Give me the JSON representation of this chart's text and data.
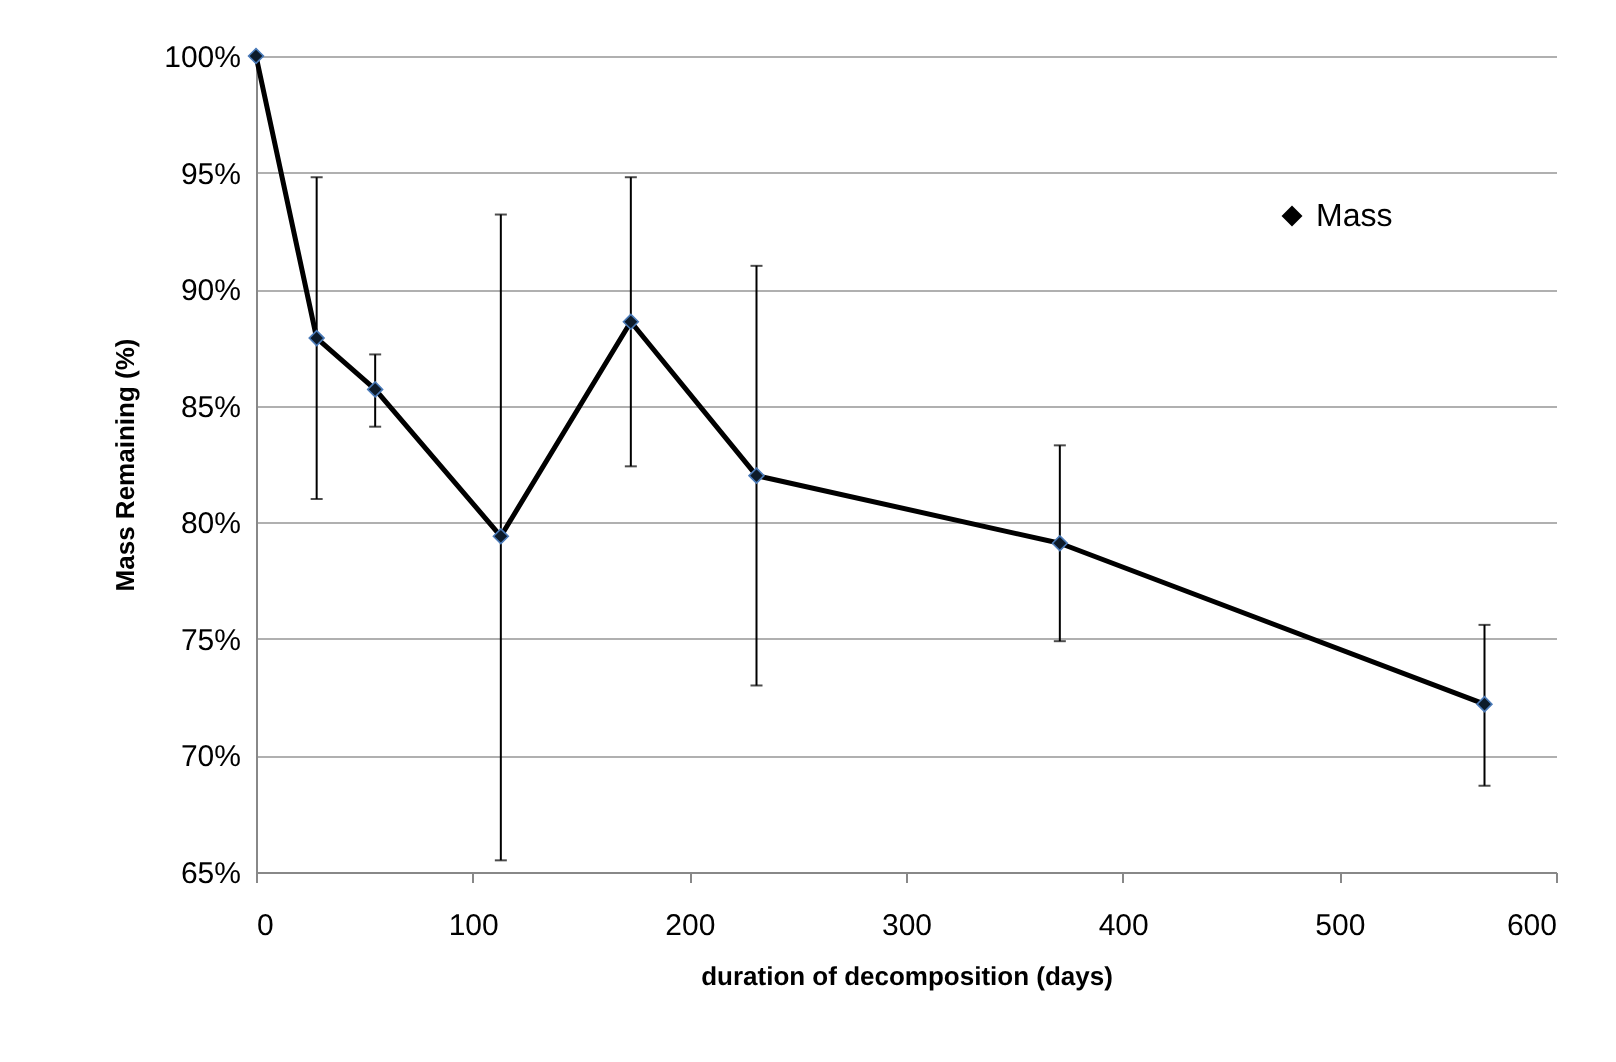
{
  "chart_data": {
    "type": "line",
    "xlabel": "duration of decomposition (days)",
    "ylabel": "Mass Remaining (%)",
    "x": [
      0,
      28,
      55,
      113,
      173,
      231,
      371,
      567
    ],
    "series": [
      {
        "name": "Mass",
        "color": "#000000",
        "values": [
          100,
          87.9,
          85.7,
          79.4,
          88.6,
          82.0,
          79.1,
          72.2
        ],
        "errors": [
          null,
          [
            81.0,
            94.8
          ],
          [
            84.1,
            87.2
          ],
          [
            65.5,
            93.2
          ],
          [
            82.4,
            94.8
          ],
          [
            73.0,
            91.0
          ],
          [
            74.9,
            83.3
          ],
          [
            68.7,
            75.6
          ]
        ]
      }
    ],
    "xlim": [
      0,
      600
    ],
    "xticks": [
      0,
      100,
      200,
      300,
      400,
      500,
      600
    ],
    "ylim": [
      65,
      100
    ],
    "yticks": [
      {
        "value": 65,
        "label": "65%"
      },
      {
        "value": 70,
        "label": "70%"
      },
      {
        "value": 75,
        "label": "75%"
      },
      {
        "value": 80,
        "label": "80%"
      },
      {
        "value": 85,
        "label": "85%"
      },
      {
        "value": 90,
        "label": "90%"
      },
      {
        "value": 95,
        "label": "95%"
      },
      {
        "value": 100,
        "label": "100%"
      }
    ],
    "grid": "y",
    "legend": "top right",
    "marker": "diamond",
    "line_style": "solid"
  }
}
